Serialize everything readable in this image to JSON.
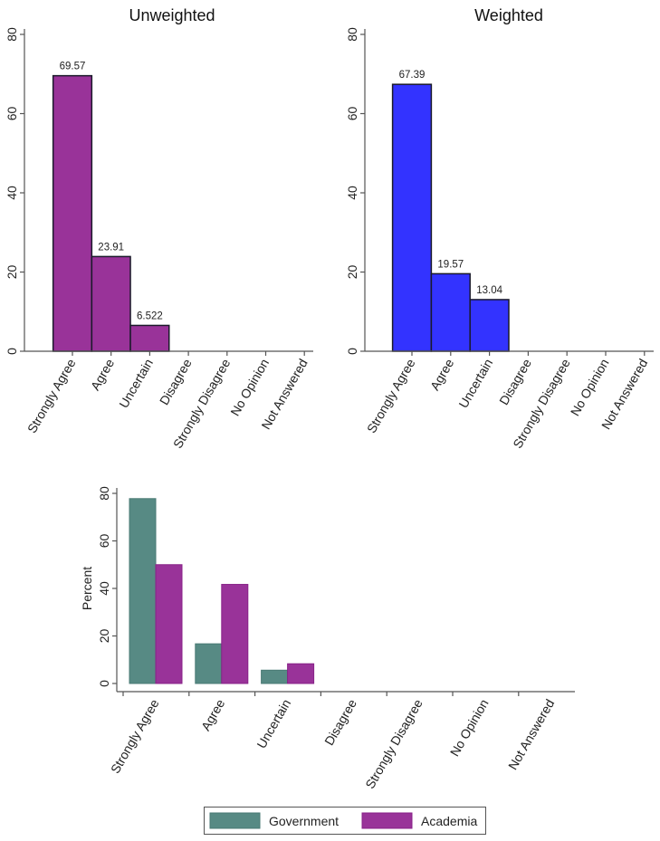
{
  "chart_data": [
    {
      "type": "bar",
      "title": "Unweighted",
      "categories": [
        "Strongly Agree",
        "Agree",
        "Uncertain",
        "Disagree",
        "Strongly Disagree",
        "No Opinion",
        "Not Answered"
      ],
      "values": [
        69.57,
        23.91,
        6.522,
        0,
        0,
        0,
        0
      ],
      "data_labels": [
        "69.57",
        "23.91",
        "6.522",
        "",
        "",
        "",
        ""
      ],
      "yticks": [
        "0",
        "20",
        "40",
        "60",
        "80"
      ],
      "ylim": [
        0,
        80
      ],
      "xlabel": "",
      "ylabel": "",
      "color": "#993399"
    },
    {
      "type": "bar",
      "title": "Weighted",
      "categories": [
        "Strongly Agree",
        "Agree",
        "Uncertain",
        "Disagree",
        "Strongly Disagree",
        "No Opinion",
        "Not Answered"
      ],
      "values": [
        67.39,
        19.57,
        13.04,
        0,
        0,
        0,
        0
      ],
      "data_labels": [
        "67.39",
        "19.57",
        "13.04",
        "",
        "",
        "",
        ""
      ],
      "yticks": [
        "0",
        "20",
        "40",
        "60",
        "80"
      ],
      "ylim": [
        0,
        80
      ],
      "xlabel": "",
      "ylabel": "",
      "color": "#3333ff"
    },
    {
      "type": "bar",
      "title": "",
      "categories": [
        "Strongly Agree",
        "Agree",
        "Uncertain",
        "Disagree",
        "Strongly Disagree",
        "No Opinion",
        "Not Answered"
      ],
      "series": [
        {
          "name": "Government",
          "values": [
            77.8,
            16.7,
            5.6,
            0,
            0,
            0,
            0
          ],
          "color": "#578a84"
        },
        {
          "name": "Academia",
          "values": [
            50.0,
            41.7,
            8.3,
            0,
            0,
            0,
            0
          ],
          "color": "#993399"
        }
      ],
      "yticks": [
        "0",
        "20",
        "40",
        "60",
        "80"
      ],
      "ylim": [
        0,
        80
      ],
      "xlabel": "",
      "ylabel": "Percent",
      "legend_position": "bottom"
    }
  ]
}
